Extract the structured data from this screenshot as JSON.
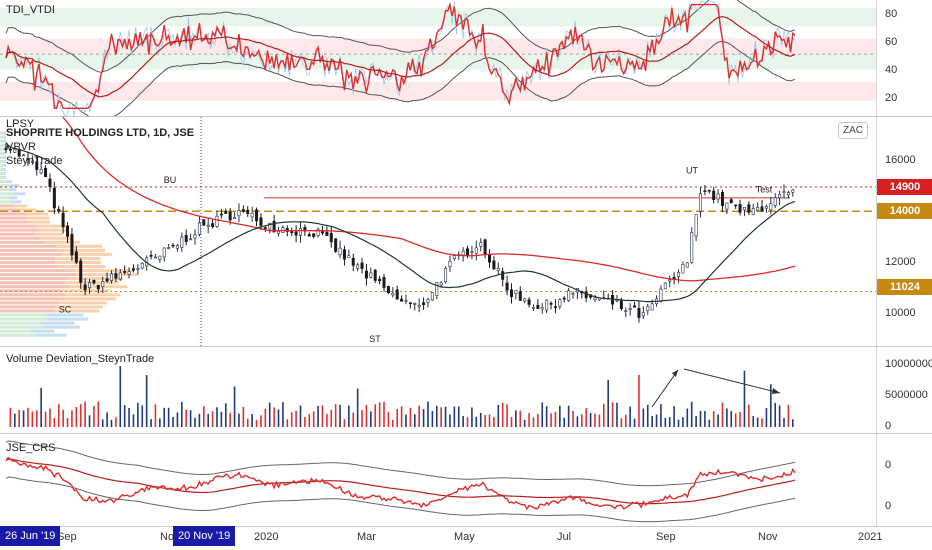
{
  "panes": {
    "tdi": {
      "name": "TDI_VTDI",
      "ticks": [
        "80",
        "60",
        "40",
        "20"
      ]
    },
    "price": {
      "lines": [
        "LPSY",
        "SHOPRITE HOLDINGS LTD, 1D, JSE",
        "VPVR",
        "SteynTrade"
      ],
      "currency": "ZAC",
      "ticks": [
        "16000",
        "14000",
        "12000",
        "10000"
      ],
      "levels": [
        {
          "label": "14900",
          "value": 14900,
          "color": "#d81e1e"
        },
        {
          "label": "14000",
          "value": 14000,
          "color": "#c68a12"
        },
        {
          "label": "11024",
          "value": 11024,
          "color": "#c68a12"
        }
      ],
      "annotations": [
        "BU",
        "SC",
        "ST",
        "UT",
        "Test"
      ]
    },
    "volume": {
      "name": "Volume Deviation_SteynTrade",
      "ticks": [
        "10000000",
        "5000000",
        "0"
      ]
    },
    "crs": {
      "name": "JSE_CRS",
      "ticks": [
        "0",
        "0"
      ]
    }
  },
  "xaxis": {
    "labels": [
      "Sep",
      "No",
      "2020",
      "Mar",
      "May",
      "Jul",
      "Sep",
      "Nov",
      "2021"
    ],
    "start_badge": "26 Jun '19",
    "cursor_badge": "20 Nov '19"
  },
  "colors": {
    "up": "#1e3a78",
    "down": "#e03030",
    "ma_red": "#e02a2a",
    "ma_dark": "#1e3a2a"
  },
  "chart_data": {
    "type": "candlestick",
    "title": "SHOPRITE HOLDINGS LTD, 1D, JSE",
    "price_levels": [
      14900,
      14000,
      11024
    ],
    "price_range": [
      9000,
      17500
    ],
    "x_range": [
      "2019-06-26",
      "2020-11-09"
    ],
    "approx_close_path": [
      {
        "date": "2019-06-26",
        "value": 16500
      },
      {
        "date": "2019-07-20",
        "value": 15400
      },
      {
        "date": "2019-08-15",
        "value": 11100
      },
      {
        "date": "2019-09-05",
        "value": 11600
      },
      {
        "date": "2019-10-01",
        "value": 12300
      },
      {
        "date": "2019-10-25",
        "value": 13300
      },
      {
        "date": "2019-11-20",
        "value": 14000
      },
      {
        "date": "2019-12-15",
        "value": 13400
      },
      {
        "date": "2020-01-10",
        "value": 13200
      },
      {
        "date": "2020-02-05",
        "value": 11900
      },
      {
        "date": "2020-02-28",
        "value": 10800
      },
      {
        "date": "2020-03-15",
        "value": 10400
      },
      {
        "date": "2020-04-05",
        "value": 12100
      },
      {
        "date": "2020-04-22",
        "value": 12900
      },
      {
        "date": "2020-05-10",
        "value": 11100
      },
      {
        "date": "2020-06-01",
        "value": 10400
      },
      {
        "date": "2020-06-20",
        "value": 11000
      },
      {
        "date": "2020-07-15",
        "value": 10600
      },
      {
        "date": "2020-08-05",
        "value": 10100
      },
      {
        "date": "2020-08-20",
        "value": 11300
      },
      {
        "date": "2020-09-01",
        "value": 12000
      },
      {
        "date": "2020-09-10",
        "value": 14900
      },
      {
        "date": "2020-09-25",
        "value": 14300
      },
      {
        "date": "2020-10-10",
        "value": 13900
      },
      {
        "date": "2020-10-25",
        "value": 14400
      },
      {
        "date": "2020-11-09",
        "value": 14700
      }
    ],
    "tdi_range": [
      10,
      85
    ],
    "volume_range": [
      0,
      12000000
    ]
  }
}
